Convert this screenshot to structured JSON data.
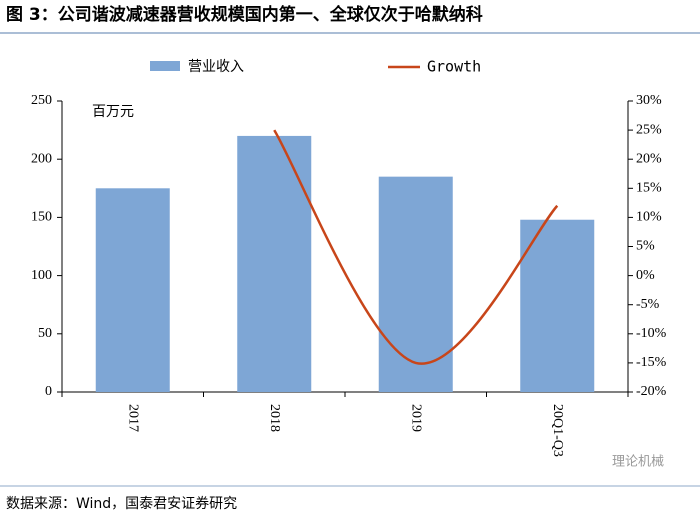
{
  "chart_data": {
    "type": "bar_line",
    "title": "图 3：公司谐波减速器营收规模国内第一、全球仅次于哈默纳科",
    "unit_label": "百万元",
    "source": "数据来源：Wind，国泰君安证券研究",
    "watermark": "理论机械",
    "categories": [
      "2017",
      "2018",
      "2019",
      "20Q1-Q3"
    ],
    "series": [
      {
        "name": "营业收入",
        "color": "#7ea6d5",
        "values": [
          175,
          220,
          185,
          148
        ]
      },
      {
        "name": "Growth",
        "color": "#c8461a",
        "axis": "y2",
        "values": [
          null,
          25,
          -15,
          12
        ]
      }
    ],
    "ylim": [
      0,
      250
    ],
    "yticks": [
      0,
      50,
      100,
      150,
      200,
      250
    ],
    "y2lim": [
      -20,
      30
    ],
    "y2ticks": [
      {
        "value": -20,
        "label": "-20%"
      },
      {
        "value": -15,
        "label": "-15%"
      },
      {
        "value": -10,
        "label": "-10%"
      },
      {
        "value": -5,
        "label": "-5%"
      },
      {
        "value": 0,
        "label": "0%"
      },
      {
        "value": 5,
        "label": "5%"
      },
      {
        "value": 10,
        "label": "10%"
      },
      {
        "value": 15,
        "label": "15%"
      },
      {
        "value": 20,
        "label": "20%"
      },
      {
        "value": 25,
        "label": "25%"
      },
      {
        "value": 30,
        "label": "30%"
      }
    ]
  }
}
